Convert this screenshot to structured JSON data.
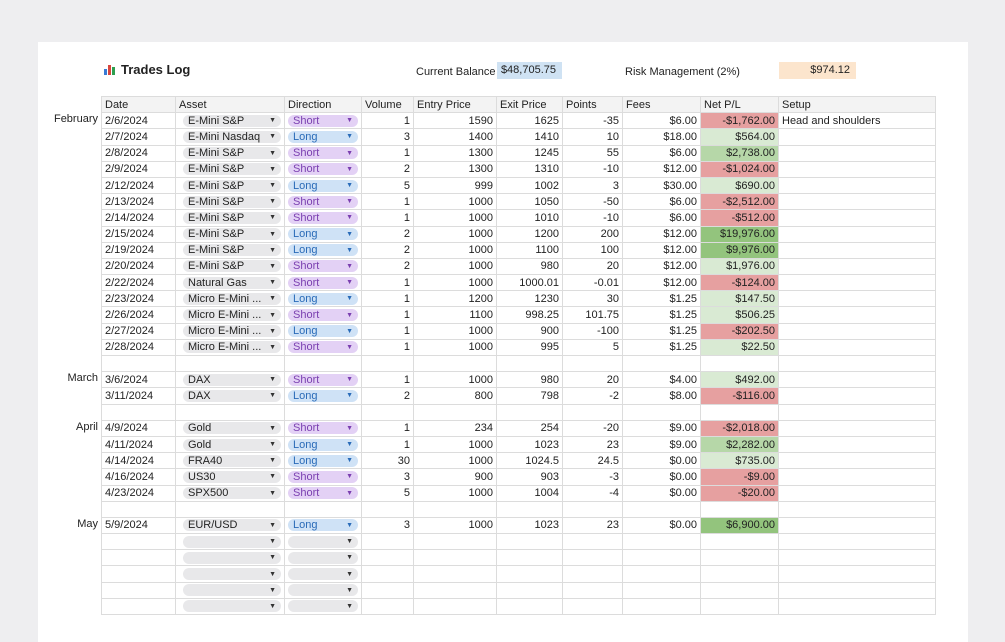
{
  "title": "Trades Log",
  "balance": {
    "label": "Current Balance",
    "value": "$48,705.75",
    "color": "#cfe2f3"
  },
  "risk": {
    "label": "Risk Management (2%)",
    "value": "$974.12",
    "color": "#fce5cd"
  },
  "headers": [
    "Date",
    "Asset",
    "Direction",
    "Volume",
    "Entry Price",
    "Exit Price",
    "Points",
    "Fees",
    "Net P/L",
    "Setup"
  ],
  "rows": [
    {
      "month": "February",
      "date": "2/6/2024",
      "asset": "E-Mini S&P",
      "dir": "Short",
      "vol": "1",
      "entry": "1590",
      "exit": "1625",
      "pts": "-35",
      "fees": "$6.00",
      "pl": "-$1,762.00",
      "setup": "Head and shoulders"
    },
    {
      "date": "2/7/2024",
      "asset": "E-Mini Nasdaq",
      "dir": "Long",
      "vol": "3",
      "entry": "1400",
      "exit": "1410",
      "pts": "10",
      "fees": "$18.00",
      "pl": "$564.00"
    },
    {
      "date": "2/8/2024",
      "asset": "E-Mini S&P",
      "dir": "Short",
      "vol": "1",
      "entry": "1300",
      "exit": "1245",
      "pts": "55",
      "fees": "$6.00",
      "pl": "$2,738.00"
    },
    {
      "date": "2/9/2024",
      "asset": "E-Mini S&P",
      "dir": "Short",
      "vol": "2",
      "entry": "1300",
      "exit": "1310",
      "pts": "-10",
      "fees": "$12.00",
      "pl": "-$1,024.00"
    },
    {
      "date": "2/12/2024",
      "asset": "E-Mini S&P",
      "dir": "Long",
      "vol": "5",
      "entry": "999",
      "exit": "1002",
      "pts": "3",
      "fees": "$30.00",
      "pl": "$690.00"
    },
    {
      "date": "2/13/2024",
      "asset": "E-Mini S&P",
      "dir": "Short",
      "vol": "1",
      "entry": "1000",
      "exit": "1050",
      "pts": "-50",
      "fees": "$6.00",
      "pl": "-$2,512.00"
    },
    {
      "date": "2/14/2024",
      "asset": "E-Mini S&P",
      "dir": "Short",
      "vol": "1",
      "entry": "1000",
      "exit": "1010",
      "pts": "-10",
      "fees": "$6.00",
      "pl": "-$512.00"
    },
    {
      "date": "2/15/2024",
      "asset": "E-Mini S&P",
      "dir": "Long",
      "vol": "2",
      "entry": "1000",
      "exit": "1200",
      "pts": "200",
      "fees": "$12.00",
      "pl": "$19,976.00"
    },
    {
      "date": "2/19/2024",
      "asset": "E-Mini S&P",
      "dir": "Long",
      "vol": "2",
      "entry": "1000",
      "exit": "1100",
      "pts": "100",
      "fees": "$12.00",
      "pl": "$9,976.00"
    },
    {
      "date": "2/20/2024",
      "asset": "E-Mini S&P",
      "dir": "Short",
      "vol": "2",
      "entry": "1000",
      "exit": "980",
      "pts": "20",
      "fees": "$12.00",
      "pl": "$1,976.00"
    },
    {
      "date": "2/22/2024",
      "asset": "Natural Gas",
      "dir": "Short",
      "vol": "1",
      "entry": "1000",
      "exit": "1000.01",
      "pts": "-0.01",
      "fees": "$12.00",
      "pl": "-$124.00"
    },
    {
      "date": "2/23/2024",
      "asset": "Micro E-Mini ...",
      "dir": "Long",
      "vol": "1",
      "entry": "1200",
      "exit": "1230",
      "pts": "30",
      "fees": "$1.25",
      "pl": "$147.50"
    },
    {
      "date": "2/26/2024",
      "asset": "Micro E-Mini ...",
      "dir": "Short",
      "vol": "1",
      "entry": "1100",
      "exit": "998.25",
      "pts": "101.75",
      "fees": "$1.25",
      "pl": "$506.25"
    },
    {
      "date": "2/27/2024",
      "asset": "Micro E-Mini ...",
      "dir": "Long",
      "vol": "1",
      "entry": "1000",
      "exit": "900",
      "pts": "-100",
      "fees": "$1.25",
      "pl": "-$202.50"
    },
    {
      "date": "2/28/2024",
      "asset": "Micro E-Mini ...",
      "dir": "Short",
      "vol": "1",
      "entry": "1000",
      "exit": "995",
      "pts": "5",
      "fees": "$1.25",
      "pl": "$22.50"
    },
    {
      "spacer": true
    },
    {
      "month": "March",
      "date": "3/6/2024",
      "asset": "DAX",
      "dir": "Short",
      "vol": "1",
      "entry": "1000",
      "exit": "980",
      "pts": "20",
      "fees": "$4.00",
      "pl": "$492.00"
    },
    {
      "date": "3/11/2024",
      "asset": "DAX",
      "dir": "Long",
      "vol": "2",
      "entry": "800",
      "exit": "798",
      "pts": "-2",
      "fees": "$8.00",
      "pl": "-$116.00"
    },
    {
      "spacer": true
    },
    {
      "month": "April",
      "date": "4/9/2024",
      "asset": "Gold",
      "dir": "Short",
      "vol": "1",
      "entry": "234",
      "exit": "254",
      "pts": "-20",
      "fees": "$9.00",
      "pl": "-$2,018.00"
    },
    {
      "date": "4/11/2024",
      "asset": "Gold",
      "dir": "Long",
      "vol": "1",
      "entry": "1000",
      "exit": "1023",
      "pts": "23",
      "fees": "$9.00",
      "pl": "$2,282.00"
    },
    {
      "date": "4/14/2024",
      "asset": "FRA40",
      "dir": "Long",
      "vol": "30",
      "entry": "1000",
      "exit": "1024.5",
      "pts": "24.5",
      "fees": "$0.00",
      "pl": "$735.00"
    },
    {
      "date": "4/16/2024",
      "asset": "US30",
      "dir": "Short",
      "vol": "3",
      "entry": "900",
      "exit": "903",
      "pts": "-3",
      "fees": "$0.00",
      "pl": "-$9.00"
    },
    {
      "date": "4/23/2024",
      "asset": "SPX500",
      "dir": "Short",
      "vol": "5",
      "entry": "1000",
      "exit": "1004",
      "pts": "-4",
      "fees": "$0.00",
      "pl": "-$20.00"
    },
    {
      "spacer": true
    },
    {
      "month": "May",
      "date": "5/9/2024",
      "asset": "EUR/USD",
      "dir": "Long",
      "vol": "3",
      "entry": "1000",
      "exit": "1023",
      "pts": "23",
      "fees": "$0.00",
      "pl": "$6,900.00"
    },
    {
      "empty": true
    },
    {
      "empty": true
    },
    {
      "empty": true
    },
    {
      "empty": true
    },
    {
      "empty": true
    }
  ]
}
